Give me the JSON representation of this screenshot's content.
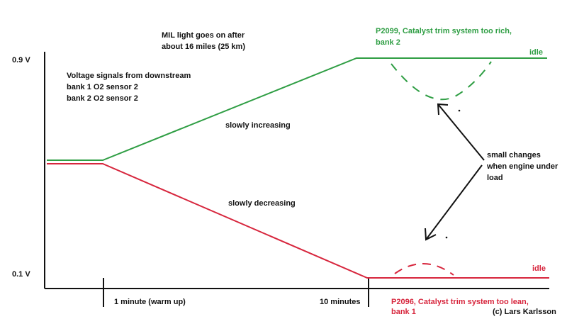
{
  "colors": {
    "green_line": "#2f9e44",
    "red_line": "#d7263d",
    "axis": "#111111",
    "text": "#111111"
  },
  "axis_labels": {
    "y_high": "0.9 V",
    "y_low": "0.1 V",
    "x_tick_1": "1 minute (warm up)",
    "x_tick_2": "10 minutes"
  },
  "annotations": {
    "mil_line1": "MIL light goes on after",
    "mil_line2": "about 16 miles (25 km)",
    "signals_line1": "Voltage signals from downstream",
    "signals_line2": "bank 1 O2 sensor 2",
    "signals_line3": "bank 2 O2 sensor 2",
    "increasing": "slowly increasing",
    "decreasing": "slowly decreasing",
    "changes_line1": "small changes",
    "changes_line2": "when engine under",
    "changes_line3": "load",
    "idle_top": "idle",
    "idle_bottom": "idle",
    "p2099_line1": "P2099, Catalyst trim system too rich,",
    "p2099_line2": "bank 2",
    "p2096_line1": "P2096, Catalyst trim system too lean,",
    "p2096_line2": "bank 1",
    "copyright": "(c) Lars Karlsson"
  }
}
